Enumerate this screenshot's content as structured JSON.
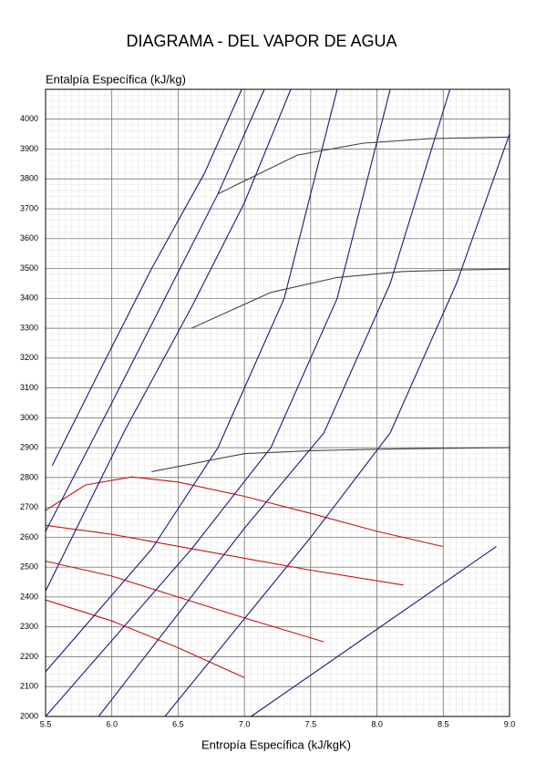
{
  "chart_data": {
    "type": "line",
    "title": "DIAGRAMA - DEL VAPOR DE AGUA",
    "x_label": "Entropía Específica (kJ/kgK)",
    "y_label": "Entalpía Específica (kJ/kg)",
    "xlim": [
      5.5,
      9.0
    ],
    "ylim": [
      2000,
      4100
    ],
    "xticks": [
      5.5,
      {
        "value": 6,
        "label": "6.0"
      },
      6.5,
      {
        "value": 7,
        "label": "7.0"
      },
      7.5,
      {
        "value": 8,
        "label": "8.0"
      },
      8.5,
      {
        "value": 9,
        "label": "9.0"
      }
    ],
    "yticks": [
      2000,
      2100,
      2200,
      2300,
      2400,
      2500,
      2600,
      2700,
      2800,
      2900,
      3000,
      3100,
      3200,
      3300,
      3400,
      3500,
      3600,
      3700,
      3800,
      3900,
      4000
    ],
    "grid": true,
    "lines": [
      {
        "color": "#cc1111",
        "x": [
          5.5,
          5.8,
          6.15,
          6.5,
          7.0,
          7.5,
          8.0,
          8.5
        ],
        "y": [
          2690,
          2775,
          2802,
          2785,
          2737,
          2680,
          2620,
          2569
        ]
      },
      {
        "color": "#cc1111",
        "x": [
          5.5,
          6.0,
          6.5,
          7.0,
          7.5,
          8.2
        ],
        "y": [
          2640,
          2610,
          2570,
          2530,
          2490,
          2440
        ]
      },
      {
        "color": "#cc1111",
        "x": [
          5.5,
          6.0,
          6.5,
          7.0,
          7.6
        ],
        "y": [
          2520,
          2470,
          2400,
          2330,
          2250
        ]
      },
      {
        "color": "#cc1111",
        "x": [
          5.5,
          6.0,
          6.5,
          7.0
        ],
        "y": [
          2390,
          2320,
          2230,
          2130
        ]
      },
      {
        "color": "#1a1a7a",
        "x": [
          5.55,
          5.9,
          6.3,
          6.7,
          6.98
        ],
        "y": [
          2840,
          3150,
          3500,
          3820,
          4100
        ]
      },
      {
        "color": "#1a1a7a",
        "x": [
          5.5,
          6.0,
          6.4,
          6.8,
          7.15
        ],
        "y": [
          2620,
          3050,
          3400,
          3750,
          4100
        ]
      },
      {
        "color": "#1a1a7a",
        "x": [
          5.5,
          6.1,
          6.6,
          7.0,
          7.35
        ],
        "y": [
          2420,
          2960,
          3370,
          3720,
          4100
        ]
      },
      {
        "color": "#1a1a7a",
        "x": [
          5.5,
          6.3,
          6.8,
          7.3,
          7.7
        ],
        "y": [
          2150,
          2560,
          2900,
          3400,
          4100
        ]
      },
      {
        "color": "#1a1a7a",
        "x": [
          5.5,
          6.6,
          7.2,
          7.7,
          8.1
        ],
        "y": [
          2000,
          2560,
          2900,
          3400,
          4100
        ]
      },
      {
        "color": "#1a1a7a",
        "x": [
          5.9,
          7.0,
          7.6,
          8.1,
          8.55
        ],
        "y": [
          2000,
          2630,
          2950,
          3450,
          4100
        ]
      },
      {
        "color": "#1a1a7a",
        "x": [
          6.4,
          7.5,
          8.1,
          8.6,
          9.0
        ],
        "y": [
          2000,
          2600,
          2950,
          3450,
          3950
        ]
      },
      {
        "color": "#1a1a7a",
        "x": [
          7.05,
          8.9
        ],
        "y": [
          2000,
          2569
        ]
      },
      {
        "color": "#444444",
        "x": [
          6.3,
          7.0,
          7.5,
          8.0,
          8.5,
          9.0
        ],
        "y": [
          2820,
          2880,
          2890,
          2895,
          2898,
          2900
        ]
      },
      {
        "color": "#444444",
        "x": [
          6.6,
          7.2,
          7.7,
          8.2,
          8.6,
          9.0
        ],
        "y": [
          3300,
          3420,
          3470,
          3490,
          3495,
          3498
        ]
      },
      {
        "color": "#444444",
        "x": [
          6.8,
          7.4,
          7.9,
          8.4,
          9.0
        ],
        "y": [
          3750,
          3880,
          3920,
          3935,
          3940
        ]
      }
    ]
  }
}
